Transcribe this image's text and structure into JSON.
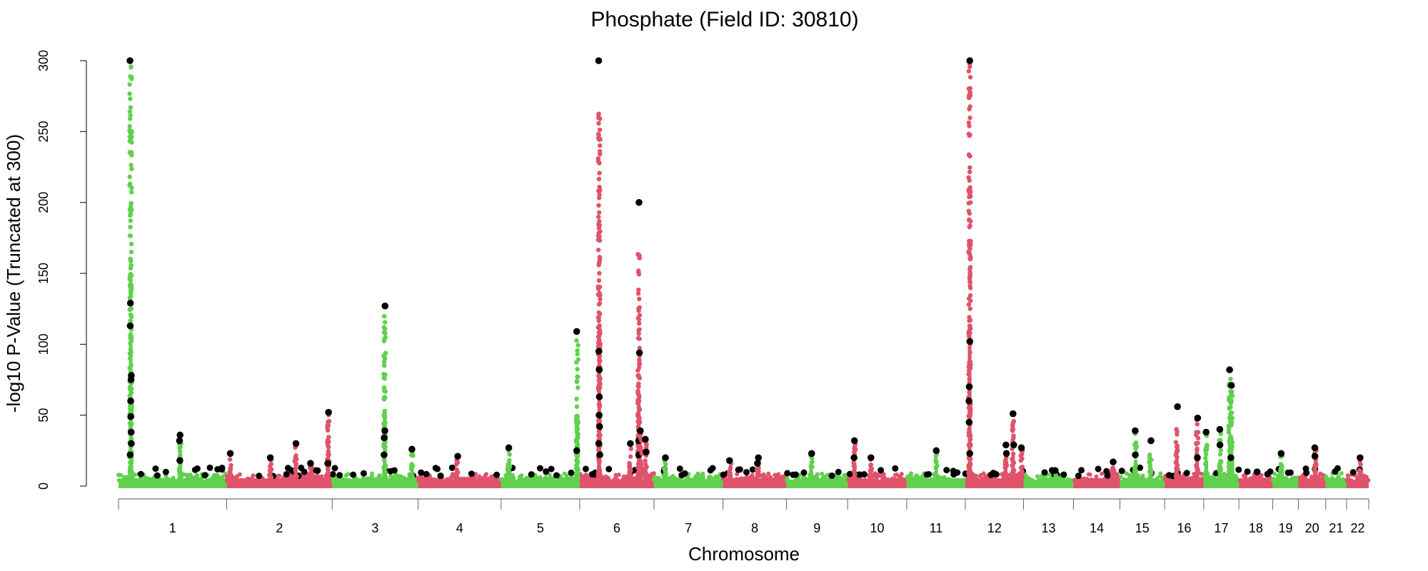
{
  "chart_data": {
    "type": "scatter",
    "subtype": "manhattan",
    "title": "Phosphate (Field ID: 30810)",
    "xlabel": "Chromosome",
    "ylabel": "-log10 P-Value (Truncated at 300)",
    "ylim": [
      0,
      300
    ],
    "yticks": [
      "0",
      "50",
      "100",
      "150",
      "200",
      "250",
      "300"
    ],
    "grid": false,
    "legend": "none",
    "colors": {
      "odd": "#61D04F",
      "even": "#DF536B",
      "lead": "#000000"
    },
    "chromosomes": [
      {
        "label": "1",
        "length_mb": 249
      },
      {
        "label": "2",
        "length_mb": 243
      },
      {
        "label": "3",
        "length_mb": 198
      },
      {
        "label": "4",
        "length_mb": 191
      },
      {
        "label": "5",
        "length_mb": 181
      },
      {
        "label": "6",
        "length_mb": 171
      },
      {
        "label": "7",
        "length_mb": 159
      },
      {
        "label": "8",
        "length_mb": 146
      },
      {
        "label": "9",
        "length_mb": 141
      },
      {
        "label": "10",
        "length_mb": 136
      },
      {
        "label": "11",
        "length_mb": 135
      },
      {
        "label": "12",
        "length_mb": 134
      },
      {
        "label": "13",
        "length_mb": 115
      },
      {
        "label": "14",
        "length_mb": 107
      },
      {
        "label": "15",
        "length_mb": 103
      },
      {
        "label": "16",
        "length_mb": 90
      },
      {
        "label": "17",
        "length_mb": 81
      },
      {
        "label": "18",
        "length_mb": 78
      },
      {
        "label": "19",
        "length_mb": 59
      },
      {
        "label": "20",
        "length_mb": 63
      },
      {
        "label": "21",
        "length_mb": 48
      },
      {
        "label": "22",
        "length_mb": 51
      }
    ],
    "peaks": [
      {
        "chr": 1,
        "pos": 28,
        "max": 300,
        "colored_max": 296,
        "leads": [
          300,
          129,
          113,
          78,
          75,
          60,
          49,
          38,
          30,
          22
        ]
      },
      {
        "chr": 1,
        "pos": 142,
        "max": 36,
        "leads": [
          36,
          32,
          18
        ]
      },
      {
        "chr": 2,
        "pos": 9,
        "max": 23,
        "leads": [
          23
        ]
      },
      {
        "chr": 2,
        "pos": 101,
        "max": 20,
        "leads": [
          20
        ]
      },
      {
        "chr": 2,
        "pos": 159,
        "max": 30,
        "leads": [
          30
        ]
      },
      {
        "chr": 2,
        "pos": 194,
        "max": 16,
        "leads": [
          16
        ]
      },
      {
        "chr": 2,
        "pos": 234,
        "max": 52,
        "leads": [
          52,
          16
        ]
      },
      {
        "chr": 3,
        "pos": 121,
        "max": 127,
        "colored_max": 120,
        "leads": [
          127,
          39,
          34,
          22
        ]
      },
      {
        "chr": 3,
        "pos": 184,
        "max": 26,
        "leads": [
          26
        ]
      },
      {
        "chr": 4,
        "pos": 90,
        "max": 21,
        "leads": [
          21
        ]
      },
      {
        "chr": 5,
        "pos": 18,
        "max": 27,
        "leads": [
          27
        ]
      },
      {
        "chr": 5,
        "pos": 175,
        "max": 109,
        "colored_max": 105,
        "leads": [
          109,
          25
        ]
      },
      {
        "chr": 6,
        "pos": 45,
        "max": 300,
        "colored_max": 265,
        "leads": [
          300,
          95,
          82,
          63,
          50,
          42,
          30,
          22
        ]
      },
      {
        "chr": 6,
        "pos": 116,
        "max": 30,
        "leads": [
          30
        ]
      },
      {
        "chr": 6,
        "pos": 136,
        "max": 200,
        "colored_max": 166,
        "leads": [
          200,
          94,
          32,
          22
        ]
      },
      {
        "chr": 6,
        "pos": 141,
        "max": 39,
        "leads": [
          39
        ]
      },
      {
        "chr": 6,
        "pos": 152,
        "max": 33,
        "leads": [
          33,
          24
        ]
      },
      {
        "chr": 7,
        "pos": 25,
        "max": 20,
        "leads": [
          20
        ]
      },
      {
        "chr": 8,
        "pos": 16,
        "max": 18,
        "leads": [
          18
        ]
      },
      {
        "chr": 8,
        "pos": 80,
        "max": 20,
        "leads": [
          20,
          16
        ]
      },
      {
        "chr": 9,
        "pos": 57,
        "max": 23,
        "leads": [
          23
        ]
      },
      {
        "chr": 10,
        "pos": 16,
        "max": 32,
        "leads": [
          32,
          20
        ]
      },
      {
        "chr": 10,
        "pos": 53,
        "max": 20,
        "leads": [
          20
        ]
      },
      {
        "chr": 11,
        "pos": 68,
        "max": 25,
        "leads": [
          25
        ]
      },
      {
        "chr": 12,
        "pos": 10,
        "max": 300,
        "colored_max": 298,
        "leads": [
          300,
          102,
          70,
          60,
          45,
          23
        ]
      },
      {
        "chr": 12,
        "pos": 93,
        "max": 29,
        "leads": [
          29,
          23
        ]
      },
      {
        "chr": 12,
        "pos": 110,
        "max": 51,
        "leads": [
          51,
          29
        ]
      },
      {
        "chr": 12,
        "pos": 130,
        "max": 27,
        "leads": [
          27
        ]
      },
      {
        "chr": 13,
        "pos": 74,
        "max": 11,
        "leads": [
          11
        ]
      },
      {
        "chr": 14,
        "pos": 91,
        "max": 17,
        "leads": [
          17
        ]
      },
      {
        "chr": 15,
        "pos": 36,
        "max": 39,
        "leads": [
          39,
          22
        ]
      },
      {
        "chr": 15,
        "pos": 70,
        "max": 32,
        "leads": [
          32
        ]
      },
      {
        "chr": 16,
        "pos": 28,
        "max": 56,
        "colored_max": 42,
        "leads": [
          56
        ]
      },
      {
        "chr": 16,
        "pos": 75,
        "max": 48,
        "leads": [
          48,
          20
        ]
      },
      {
        "chr": 17,
        "pos": 6,
        "max": 38,
        "leads": [
          38
        ]
      },
      {
        "chr": 17,
        "pos": 38,
        "max": 40,
        "leads": [
          40,
          29
        ]
      },
      {
        "chr": 17,
        "pos": 60,
        "max": 82,
        "leads": [
          82
        ]
      },
      {
        "chr": 17,
        "pos": 64,
        "max": 71,
        "leads": [
          71,
          20
        ]
      },
      {
        "chr": 18,
        "pos": 43,
        "max": 10,
        "leads": [
          10
        ]
      },
      {
        "chr": 19,
        "pos": 20,
        "max": 23,
        "leads": [
          23
        ]
      },
      {
        "chr": 20,
        "pos": 39,
        "max": 27,
        "leads": [
          27,
          21
        ]
      },
      {
        "chr": 22,
        "pos": 31,
        "max": 20,
        "leads": [
          20
        ]
      }
    ]
  }
}
